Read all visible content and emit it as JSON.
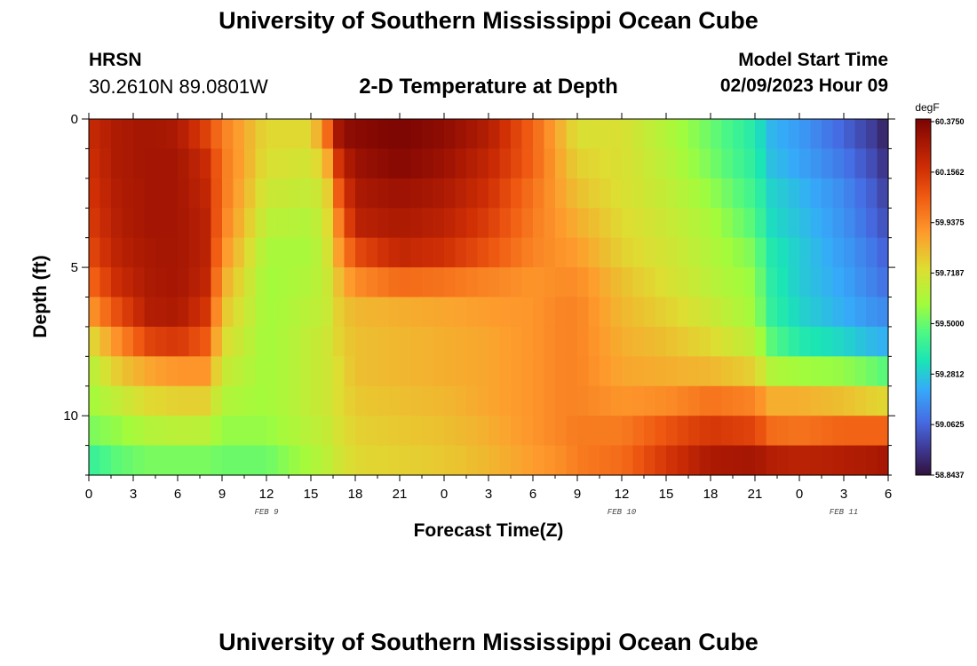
{
  "title": "University of Southern Mississippi Ocean Cube",
  "footer_title": "University of Southern Mississippi Ocean Cube",
  "station": "HRSN",
  "coordinates": "30.2610N  89.0801W",
  "subtitle": "2-D Temperature at Depth",
  "model_start_label": "Model Start Time",
  "model_start_value": "02/09/2023 Hour 09",
  "chart_data": {
    "type": "heatmap",
    "title": "2-D Temperature at Depth",
    "xlabel": "Forecast Time(Z)",
    "ylabel": "Depth (ft)",
    "x_tick_labels": [
      "0",
      "3",
      "6",
      "9",
      "12",
      "15",
      "18",
      "21",
      "0",
      "3",
      "6",
      "9",
      "12",
      "15",
      "18",
      "21",
      "0",
      "3",
      "6"
    ],
    "x_hours": [
      0,
      3,
      6,
      9,
      12,
      15,
      18,
      21,
      24,
      27,
      30,
      33,
      36,
      39,
      42,
      45,
      48,
      51,
      54
    ],
    "x_range_hours": [
      0,
      54
    ],
    "date_labels": [
      {
        "label": "FEB 9",
        "hour": 12
      },
      {
        "label": "FEB 10",
        "hour": 36
      },
      {
        "label": "FEB 11",
        "hour": 51
      }
    ],
    "y_tick_labels": [
      "0",
      "5",
      "10"
    ],
    "y_ticks": [
      0,
      5,
      10
    ],
    "y_range_ft": [
      0,
      12
    ],
    "colorbar": {
      "unit": "degF",
      "labels": [
        "60.3750",
        "60.1562",
        "59.9375",
        "59.7187",
        "59.5000",
        "59.2812",
        "59.0625",
        "58.8437"
      ],
      "min": 58.8437,
      "max": 60.375
    },
    "depth_rows_ft": [
      0.5,
      1.5,
      2.5,
      3.5,
      4.5,
      5.5,
      6.5,
      7.5,
      8.5,
      9.5,
      10.5,
      11.5
    ],
    "profiles": [
      {
        "hour": 0,
        "values": [
          60.18,
          60.16,
          60.14,
          60.12,
          60.08,
          60.0,
          59.88,
          59.72,
          59.62,
          59.58,
          59.52,
          59.4
        ]
      },
      {
        "hour": 2,
        "values": [
          60.26,
          60.26,
          60.25,
          60.24,
          60.22,
          60.18,
          60.08,
          59.92,
          59.78,
          59.66,
          59.56,
          59.48
        ]
      },
      {
        "hour": 4,
        "values": [
          60.28,
          60.28,
          60.28,
          60.28,
          60.27,
          60.26,
          60.24,
          60.1,
          59.86,
          59.74,
          59.62,
          59.52
        ]
      },
      {
        "hour": 6,
        "values": [
          60.26,
          60.28,
          60.28,
          60.28,
          60.28,
          60.28,
          60.26,
          60.14,
          59.9,
          59.76,
          59.64,
          59.52
        ]
      },
      {
        "hour": 8,
        "values": [
          60.1,
          60.18,
          60.2,
          60.22,
          60.22,
          60.2,
          60.14,
          60.04,
          59.9,
          59.76,
          59.64,
          59.52
        ]
      },
      {
        "hour": 9,
        "values": [
          59.96,
          59.98,
          59.98,
          59.96,
          59.92,
          59.86,
          59.8,
          59.74,
          59.68,
          59.62,
          59.56,
          59.5
        ]
      },
      {
        "hour": 12,
        "values": [
          59.74,
          59.72,
          59.68,
          59.64,
          59.6,
          59.58,
          59.58,
          59.58,
          59.58,
          59.58,
          59.56,
          59.5
        ]
      },
      {
        "hour": 15,
        "values": [
          59.74,
          59.7,
          59.66,
          59.62,
          59.6,
          59.62,
          59.64,
          59.66,
          59.66,
          59.66,
          59.64,
          59.6
        ]
      },
      {
        "hour": 16,
        "values": [
          59.96,
          59.8,
          59.72,
          59.7,
          59.68,
          59.66,
          59.66,
          59.68,
          59.68,
          59.68,
          59.66,
          59.64
        ]
      },
      {
        "hour": 17,
        "values": [
          60.32,
          60.2,
          60.08,
          59.98,
          59.9,
          59.82,
          59.78,
          59.76,
          59.74,
          59.74,
          59.72,
          59.7
        ]
      },
      {
        "hour": 18,
        "values": [
          60.34,
          60.3,
          60.26,
          60.22,
          60.08,
          59.92,
          59.82,
          59.8,
          59.8,
          59.78,
          59.76,
          59.74
        ]
      },
      {
        "hour": 21,
        "values": [
          60.37,
          60.35,
          60.3,
          60.26,
          60.2,
          60.0,
          59.84,
          59.82,
          59.82,
          59.8,
          59.78,
          59.76
        ]
      },
      {
        "hour": 24,
        "values": [
          60.33,
          60.3,
          60.26,
          60.22,
          60.16,
          59.98,
          59.86,
          59.84,
          59.84,
          59.82,
          59.8,
          59.78
        ]
      },
      {
        "hour": 27,
        "values": [
          60.24,
          60.2,
          60.16,
          60.12,
          60.06,
          59.94,
          59.88,
          59.86,
          59.86,
          59.86,
          59.84,
          59.82
        ]
      },
      {
        "hour": 30,
        "values": [
          60.02,
          60.02,
          59.98,
          59.96,
          59.94,
          59.9,
          59.9,
          59.9,
          59.9,
          59.9,
          59.9,
          59.88
        ]
      },
      {
        "hour": 32,
        "values": [
          59.82,
          59.84,
          59.86,
          59.88,
          59.9,
          59.92,
          59.94,
          59.94,
          59.94,
          59.94,
          59.94,
          59.92
        ]
      },
      {
        "hour": 33,
        "values": [
          59.72,
          59.76,
          59.8,
          59.84,
          59.88,
          59.92,
          59.94,
          59.94,
          59.94,
          59.94,
          59.96,
          59.96
        ]
      },
      {
        "hour": 36,
        "values": [
          59.72,
          59.72,
          59.72,
          59.74,
          59.76,
          59.8,
          59.82,
          59.84,
          59.86,
          59.9,
          59.96,
          60.0
        ]
      },
      {
        "hour": 39,
        "values": [
          59.62,
          59.64,
          59.66,
          59.68,
          59.7,
          59.72,
          59.76,
          59.8,
          59.84,
          59.92,
          60.06,
          60.14
        ]
      },
      {
        "hour": 42,
        "values": [
          59.5,
          59.52,
          59.56,
          59.6,
          59.62,
          59.64,
          59.68,
          59.74,
          59.82,
          59.98,
          60.14,
          60.26
        ]
      },
      {
        "hour": 45,
        "values": [
          59.36,
          59.38,
          59.42,
          59.46,
          59.52,
          59.56,
          59.58,
          59.64,
          59.76,
          59.94,
          60.1,
          60.28
        ]
      },
      {
        "hour": 46,
        "values": [
          59.24,
          59.26,
          59.3,
          59.32,
          59.36,
          59.38,
          59.4,
          59.48,
          59.62,
          59.84,
          60.0,
          60.24
        ]
      },
      {
        "hour": 48,
        "values": [
          59.18,
          59.2,
          59.24,
          59.26,
          59.28,
          59.28,
          59.3,
          59.36,
          59.58,
          59.84,
          59.98,
          60.22
        ]
      },
      {
        "hour": 51,
        "values": [
          59.06,
          59.1,
          59.14,
          59.16,
          59.18,
          59.2,
          59.22,
          59.3,
          59.56,
          59.8,
          60.02,
          60.24
        ]
      },
      {
        "hour": 53,
        "values": [
          58.96,
          59.0,
          59.04,
          59.06,
          59.1,
          59.12,
          59.16,
          59.24,
          59.5,
          59.76,
          60.02,
          60.26
        ]
      },
      {
        "hour": 54,
        "values": [
          58.88,
          58.92,
          58.96,
          59.0,
          59.04,
          59.08,
          59.14,
          59.22,
          59.46,
          59.74,
          60.02,
          60.28
        ]
      }
    ]
  }
}
